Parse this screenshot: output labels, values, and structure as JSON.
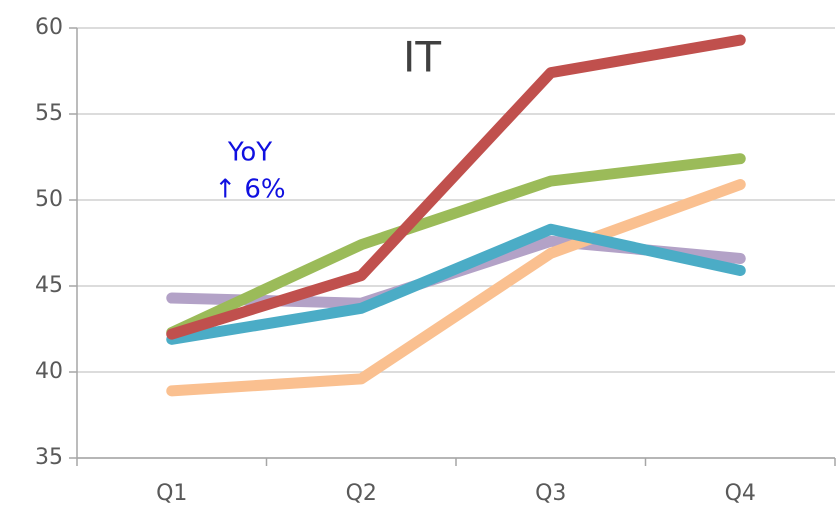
{
  "chart_data": {
    "type": "line",
    "title": "IT",
    "annotations": [
      "YoY",
      "↑ 6%"
    ],
    "categories": [
      "Q1",
      "Q2",
      "Q3",
      "Q4"
    ],
    "series": [
      {
        "color": "#b3a2c7",
        "values": [
          44.3,
          44.0,
          47.6,
          46.6
        ]
      },
      {
        "color": "#fac090",
        "values": [
          38.9,
          39.6,
          46.9,
          50.9
        ]
      },
      {
        "color": "#9bbb59",
        "values": [
          42.3,
          47.4,
          51.1,
          52.4
        ]
      },
      {
        "color": "#4bacc6",
        "values": [
          41.9,
          43.7,
          48.3,
          45.9
        ]
      },
      {
        "color": "#c0504d",
        "values": [
          42.2,
          45.6,
          57.4,
          59.3
        ]
      }
    ],
    "ylim": [
      35,
      60
    ],
    "yticks": [
      35,
      40,
      45,
      50,
      55,
      60
    ],
    "grid": true
  }
}
